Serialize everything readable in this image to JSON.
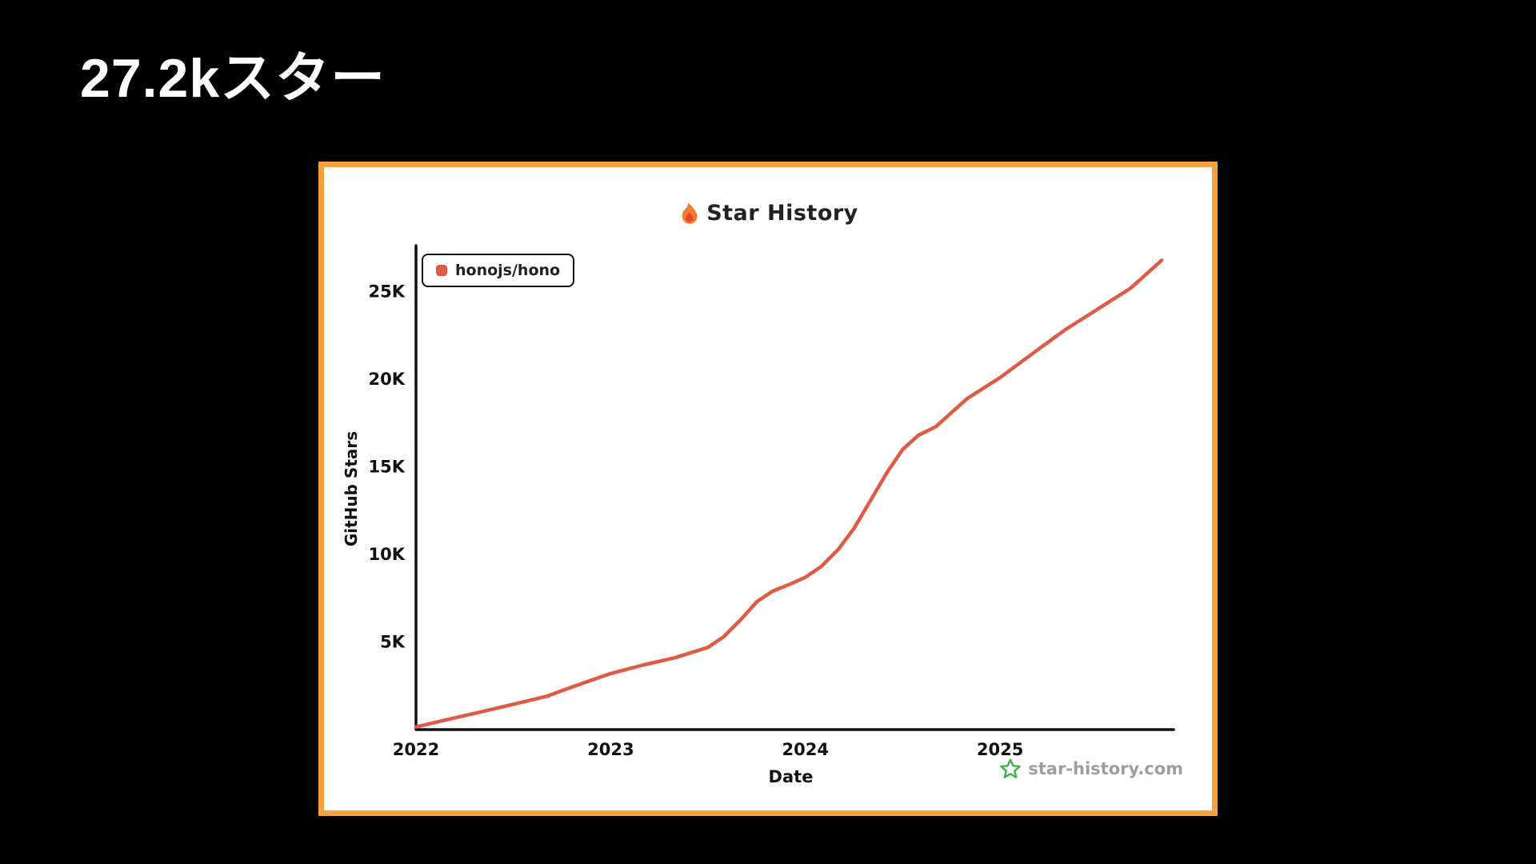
{
  "slide": {
    "title": "27.2kスター",
    "background": "#000000"
  },
  "chart": {
    "border_color": "#F7A13C",
    "background": "#FFFFFF",
    "title": "Star History",
    "watermark": {
      "text": "star-history.com",
      "icon": "green-star",
      "icon_color": "#3CB043",
      "text_color": "#9E9E9E"
    }
  },
  "chart_data": {
    "type": "line",
    "title": "Star History",
    "xlabel": "Date",
    "ylabel": "GitHub Stars",
    "x_ticks": [
      "2022",
      "2023",
      "2024",
      "2025"
    ],
    "x_tick_values": [
      2022,
      2023,
      2024,
      2025
    ],
    "y_ticks": [
      "5K",
      "10K",
      "15K",
      "20K",
      "25K"
    ],
    "y_tick_values": [
      5000,
      10000,
      15000,
      20000,
      25000
    ],
    "xlim": [
      2022,
      2025.85
    ],
    "ylim": [
      0,
      27500
    ],
    "grid": false,
    "legend_position": "top-left",
    "series": [
      {
        "name": "honojs/hono",
        "color": "#DF5B46",
        "x": [
          2022.0,
          2022.17,
          2022.33,
          2022.5,
          2022.67,
          2022.83,
          2023.0,
          2023.17,
          2023.33,
          2023.5,
          2023.58,
          2023.67,
          2023.75,
          2023.83,
          2023.92,
          2024.0,
          2024.08,
          2024.17,
          2024.25,
          2024.33,
          2024.42,
          2024.5,
          2024.58,
          2024.67,
          2024.75,
          2024.83,
          2025.0,
          2025.17,
          2025.33,
          2025.5,
          2025.67,
          2025.83
        ],
        "y": [
          150,
          600,
          1000,
          1450,
          1900,
          2550,
          3200,
          3700,
          4100,
          4700,
          5300,
          6300,
          7300,
          7900,
          8300,
          8700,
          9300,
          10300,
          11500,
          13000,
          14700,
          16000,
          16800,
          17300,
          18100,
          18900,
          20100,
          21500,
          22800,
          24000,
          25200,
          26800
        ]
      }
    ]
  }
}
